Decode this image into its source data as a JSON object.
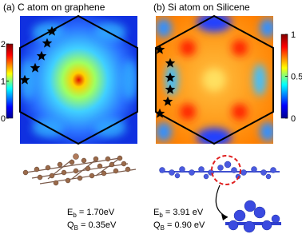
{
  "panels": [
    {
      "title": "(a) C atom on graphene",
      "colorbar": {
        "lim": [
          0,
          2
        ],
        "ticks": [
          0,
          1,
          2
        ]
      },
      "energies": [
        {
          "symbol": "E",
          "sub": "b",
          "text": " = 1.70eV"
        },
        {
          "symbol": "Q",
          "sub": "B",
          "text": " = 0.35eV"
        }
      ]
    },
    {
      "title": "(b) Si atom on Silicene",
      "colorbar": {
        "lim": [
          0,
          1
        ],
        "ticks": [
          0,
          0.5,
          1
        ]
      },
      "energies": [
        {
          "symbol": "E",
          "sub": "b",
          "text": " = 3.91 eV"
        },
        {
          "symbol": "Q",
          "sub": "B",
          "text": " = 0.90 eV"
        }
      ]
    }
  ]
}
